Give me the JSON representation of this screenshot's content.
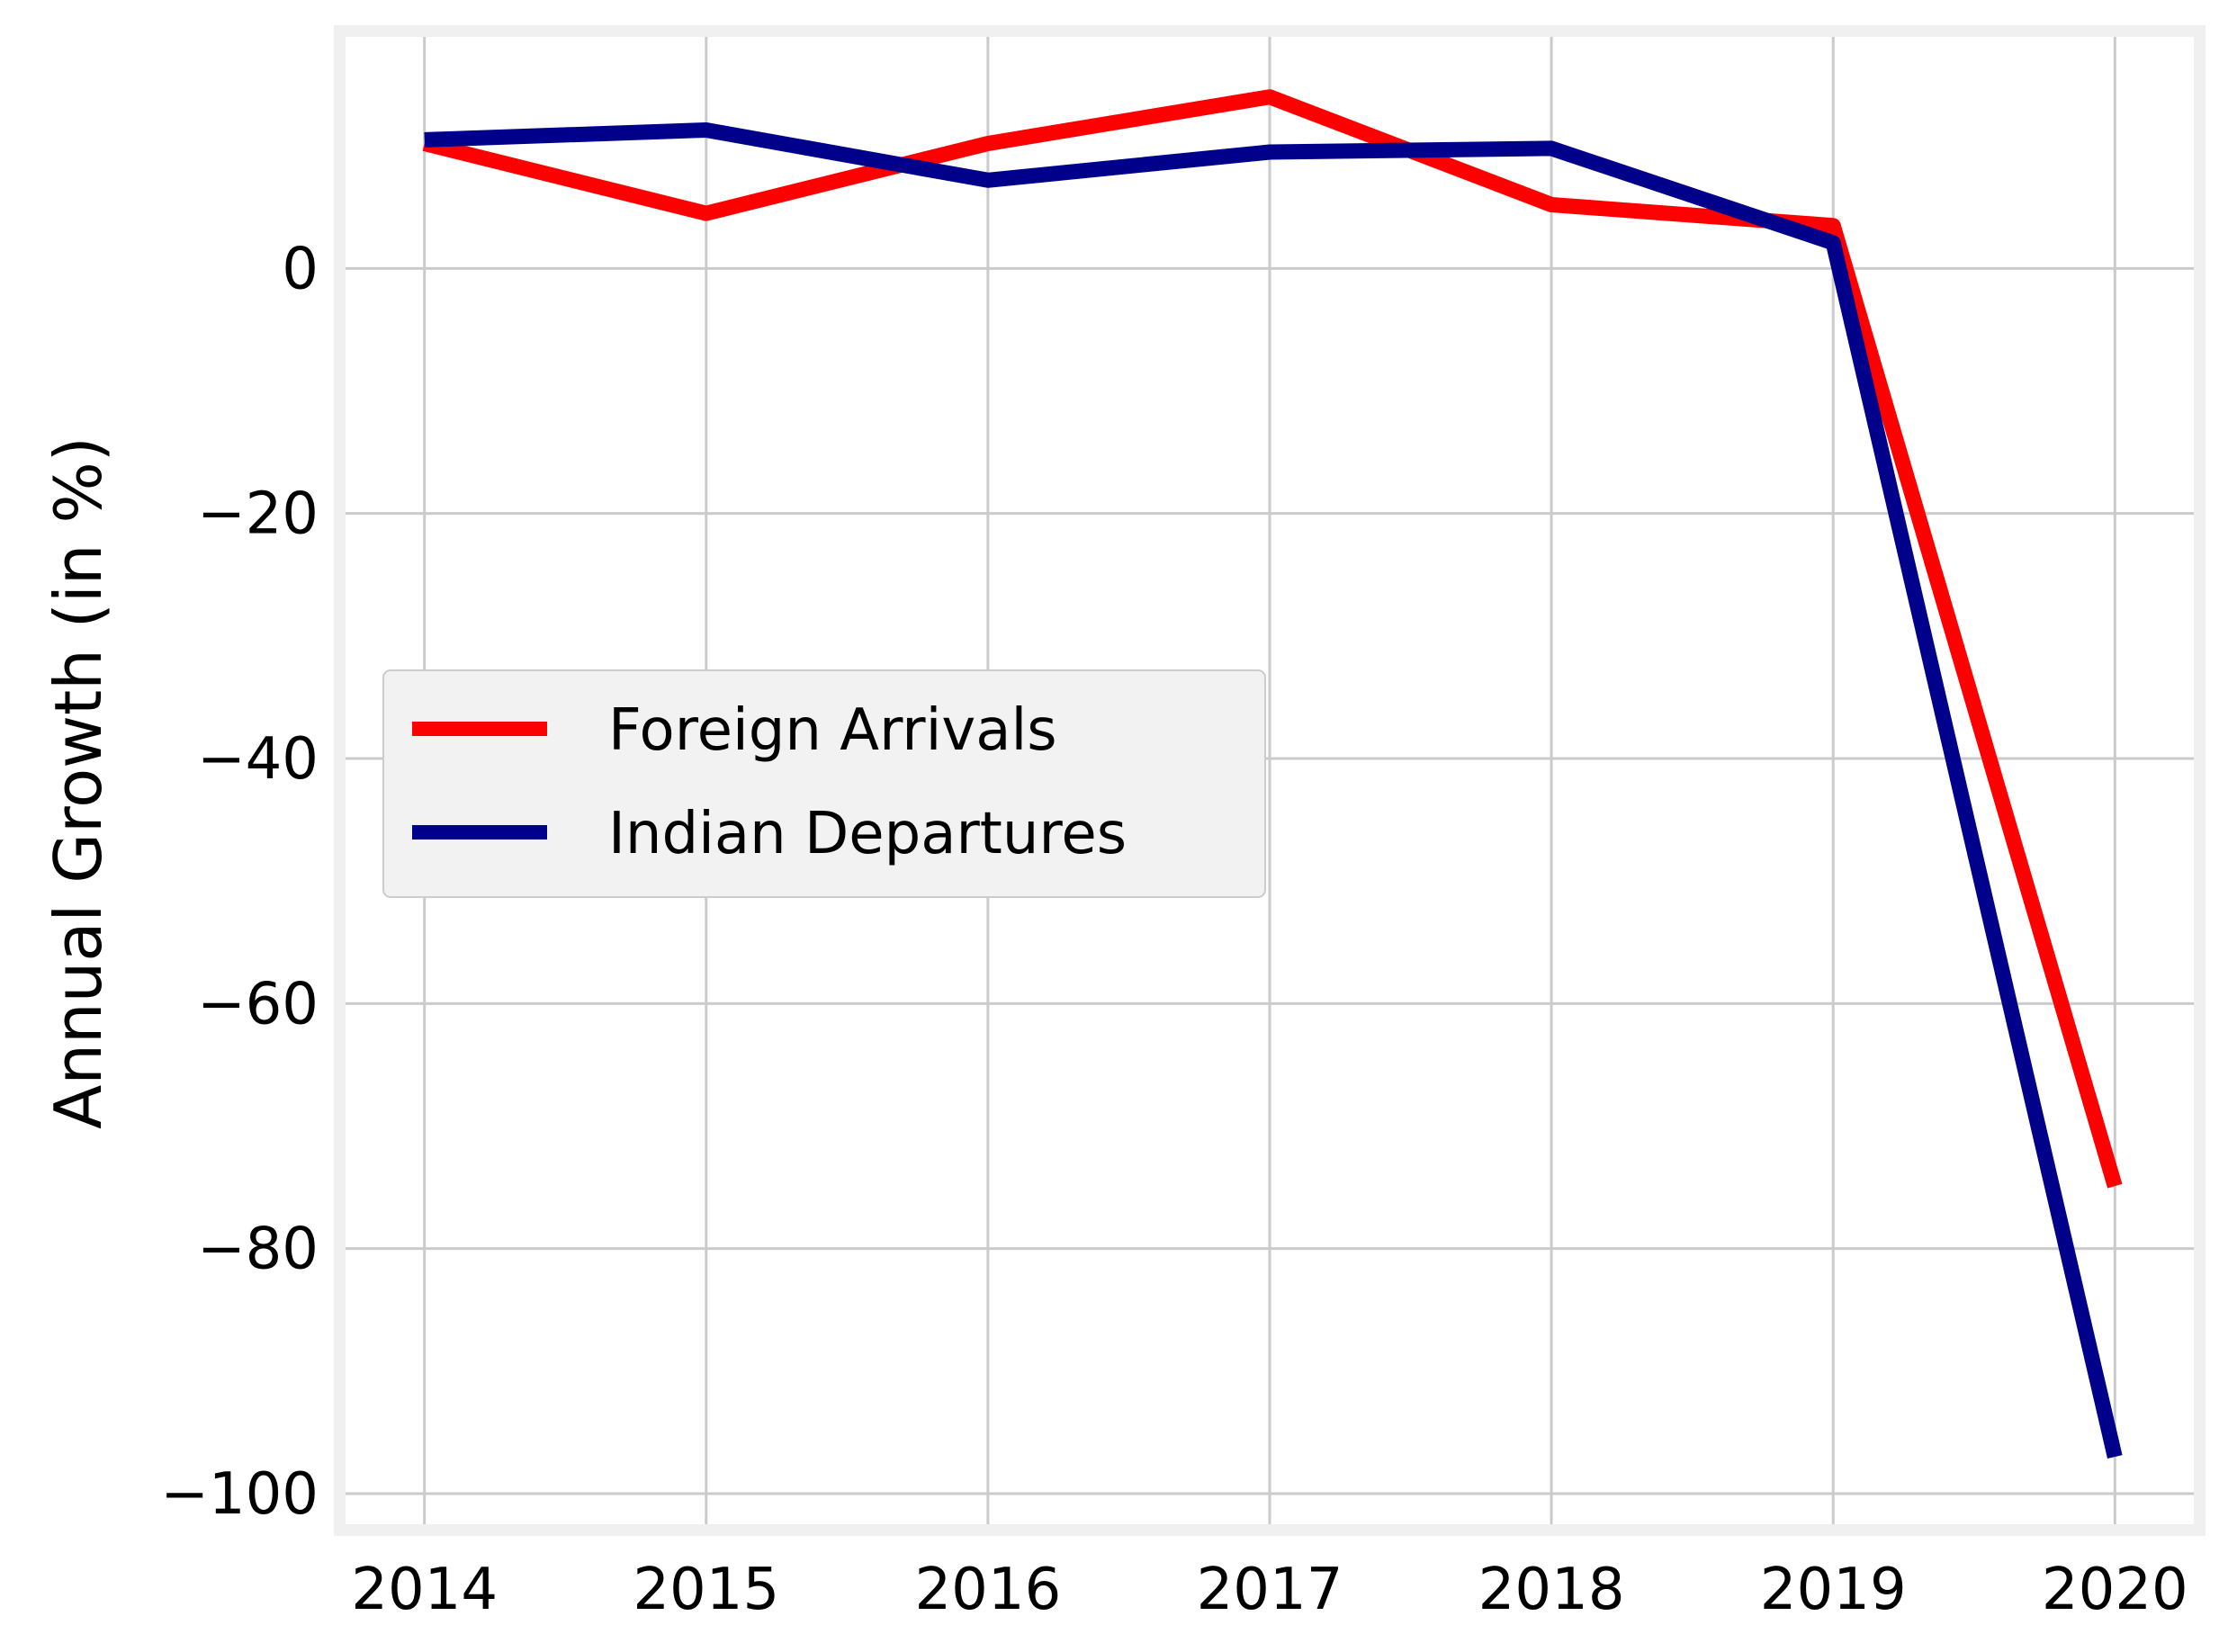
{
  "chart_data": {
    "type": "line",
    "title": "",
    "xlabel": "",
    "ylabel": "Annual Growth (in %)",
    "x": [
      2014,
      2015,
      2016,
      2017,
      2018,
      2019,
      2020
    ],
    "xlim": [
      2013.72,
      2020.28
    ],
    "ylim": [
      -102.5,
      18.9
    ],
    "x_ticks": [
      "2014",
      "2015",
      "2016",
      "2017",
      "2018",
      "2019",
      "2020"
    ],
    "y_ticks": [
      0,
      -20,
      -40,
      -60,
      -80,
      -100
    ],
    "y_tick_labels": [
      "0",
      "−20",
      "−40",
      "−60",
      "−80",
      "−100"
    ],
    "grid": true,
    "legend_position": "center-left",
    "series": [
      {
        "name": "Foreign Arrivals",
        "color": "#ff0000",
        "values": [
          10.2,
          4.5,
          10.2,
          14.0,
          5.2,
          3.5,
          -74.9
        ]
      },
      {
        "name": "Indian Departures",
        "color": "#00008b",
        "values": [
          10.5,
          11.3,
          7.2,
          9.5,
          9.8,
          2.1,
          -97.0
        ]
      }
    ]
  }
}
